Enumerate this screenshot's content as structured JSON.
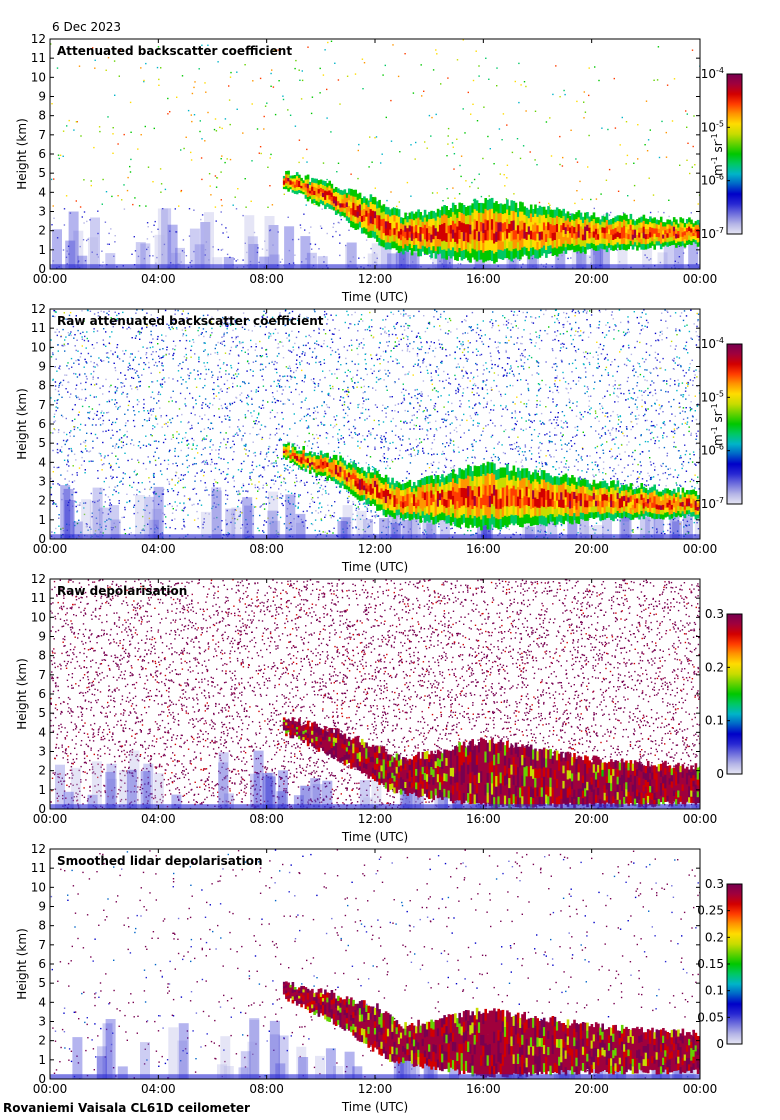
{
  "date": "6 Dec 2023",
  "footer": "Rovaniemi Vaisala CL61D ceilometer",
  "colorbar_colors": [
    "#e6e6f4",
    "#b4b4e6",
    "#7070dc",
    "#2828d2",
    "#0000c8",
    "#0064c8",
    "#00b4c8",
    "#00c864",
    "#00c800",
    "#64d200",
    "#c8dc00",
    "#ffdc00",
    "#ff9600",
    "#ff3c00",
    "#d20000",
    "#a0003c",
    "#780050"
  ],
  "chart_data": [
    {
      "type": "heatmap",
      "title": "Attenuated backscatter coefficient",
      "xlabel": "Time (UTC)",
      "ylabel": "Height (km)",
      "xticks": [
        "00:00",
        "04:00",
        "08:00",
        "12:00",
        "16:00",
        "20:00",
        "00:00"
      ],
      "yticks": [
        "0",
        "1",
        "2",
        "3",
        "4",
        "5",
        "6",
        "7",
        "8",
        "9",
        "10",
        "11",
        "12"
      ],
      "xlim_hours": [
        0,
        24
      ],
      "ylim_km": [
        0,
        12
      ],
      "colorbar": {
        "scale": "log",
        "range": [
          1e-07,
          0.0001
        ],
        "ticks": [
          {
            "base": "10",
            "exp": "-7"
          },
          {
            "base": "10",
            "exp": "-6"
          },
          {
            "base": "10",
            "exp": "-5"
          },
          {
            "base": "10",
            "exp": "-4"
          }
        ],
        "unit": {
          "m": "m",
          "m_exp": "-1",
          "sr": "sr",
          "sr_exp": "-1"
        }
      },
      "cloud_top_km": [
        [
          8.6,
          5.0
        ],
        [
          10,
          4.6
        ],
        [
          12,
          3.6
        ],
        [
          13,
          2.8
        ],
        [
          16,
          3.6
        ],
        [
          20,
          2.8
        ],
        [
          24,
          2.5
        ]
      ],
      "cloud_base_km": [
        [
          8.6,
          4.3
        ],
        [
          10.4,
          3.0
        ],
        [
          12.5,
          1.0
        ],
        [
          16,
          0.4
        ],
        [
          20,
          1.0
        ],
        [
          24,
          1.3
        ]
      ],
      "noise_density": "low"
    },
    {
      "type": "heatmap",
      "title": "Raw attenuated backscatter coefficient",
      "xlabel": "Time (UTC)",
      "ylabel": "Height (km)",
      "xticks": [
        "00:00",
        "04:00",
        "08:00",
        "12:00",
        "16:00",
        "20:00",
        "00:00"
      ],
      "yticks": [
        "0",
        "1",
        "2",
        "3",
        "4",
        "5",
        "6",
        "7",
        "8",
        "9",
        "10",
        "11",
        "12"
      ],
      "xlim_hours": [
        0,
        24
      ],
      "ylim_km": [
        0,
        12
      ],
      "colorbar": {
        "scale": "log",
        "range": [
          1e-07,
          0.0001
        ],
        "ticks": [
          {
            "base": "10",
            "exp": "-7"
          },
          {
            "base": "10",
            "exp": "-6"
          },
          {
            "base": "10",
            "exp": "-5"
          },
          {
            "base": "10",
            "exp": "-4"
          }
        ],
        "unit": {
          "m": "m",
          "m_exp": "-1",
          "sr": "sr",
          "sr_exp": "-1"
        }
      },
      "cloud_top_km": [
        [
          8.6,
          4.9
        ],
        [
          10,
          4.5
        ],
        [
          12,
          3.5
        ],
        [
          13,
          2.8
        ],
        [
          16,
          3.9
        ],
        [
          20,
          3.0
        ],
        [
          24,
          2.4
        ]
      ],
      "cloud_base_km": [
        [
          8.6,
          4.2
        ],
        [
          10.4,
          3.0
        ],
        [
          12.5,
          1.2
        ],
        [
          16,
          0.6
        ],
        [
          20,
          1.0
        ],
        [
          24,
          1.2
        ]
      ],
      "noise_density": "high"
    },
    {
      "type": "heatmap",
      "title": "Raw depolarisation",
      "xlabel": "Time (UTC)",
      "ylabel": "Height (km)",
      "xticks": [
        "00:00",
        "04:00",
        "08:00",
        "12:00",
        "16:00",
        "20:00",
        "00:00"
      ],
      "yticks": [
        "0",
        "1",
        "2",
        "3",
        "4",
        "5",
        "6",
        "7",
        "8",
        "9",
        "10",
        "11",
        "12"
      ],
      "xlim_hours": [
        0,
        24
      ],
      "ylim_km": [
        0,
        12
      ],
      "colorbar": {
        "scale": "linear",
        "range": [
          0,
          0.3
        ],
        "ticks": [
          "0",
          "0.1",
          "0.2",
          "0.3"
        ]
      },
      "cloud_top_km": [
        [
          8.6,
          4.7
        ],
        [
          10,
          4.3
        ],
        [
          12,
          3.3
        ],
        [
          13,
          2.6
        ],
        [
          16,
          3.6
        ],
        [
          20,
          2.6
        ],
        [
          24,
          2.2
        ]
      ],
      "cloud_base_km": [
        [
          8.6,
          4.0
        ],
        [
          10.4,
          2.8
        ],
        [
          12.5,
          1.0
        ],
        [
          16,
          0.2
        ],
        [
          20,
          0.2
        ],
        [
          24,
          0.3
        ]
      ],
      "noise_density": "saturated"
    },
    {
      "type": "heatmap",
      "title": "Smoothed lidar depolarisation",
      "xlabel": "Time (UTC)",
      "ylabel": "Height (km)",
      "xticks": [
        "00:00",
        "04:00",
        "08:00",
        "12:00",
        "16:00",
        "20:00",
        "00:00"
      ],
      "yticks": [
        "0",
        "1",
        "2",
        "3",
        "4",
        "5",
        "6",
        "7",
        "8",
        "9",
        "10",
        "11",
        "12"
      ],
      "xlim_hours": [
        0,
        24
      ],
      "ylim_km": [
        0,
        12
      ],
      "colorbar": {
        "scale": "linear",
        "range": [
          0,
          0.3
        ],
        "ticks": [
          "0",
          "0.05",
          "0.1",
          "0.15",
          "0.2",
          "0.25",
          "0.3"
        ]
      },
      "cloud_top_km": [
        [
          8.6,
          5.0
        ],
        [
          10,
          4.6
        ],
        [
          12,
          3.8
        ],
        [
          13,
          2.8
        ],
        [
          16,
          3.6
        ],
        [
          20,
          2.8
        ],
        [
          24,
          2.4
        ]
      ],
      "cloud_base_km": [
        [
          8.6,
          4.3
        ],
        [
          10.4,
          3.0
        ],
        [
          12.5,
          1.0
        ],
        [
          16,
          0.2
        ],
        [
          20,
          0.4
        ],
        [
          24,
          0.4
        ]
      ],
      "noise_density": "sparse"
    }
  ]
}
